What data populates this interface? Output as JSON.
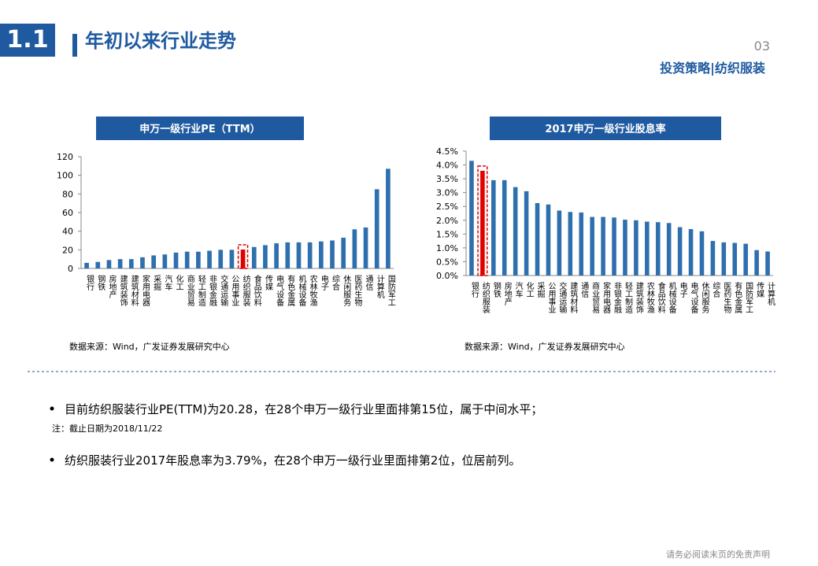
{
  "header": {
    "section": "1.1",
    "title": "年初以来行业走势",
    "page": "03",
    "subtitle": "投资策略|纺织服装"
  },
  "chart_data": [
    {
      "type": "bar",
      "title": "申万一级行业PE（TTM）",
      "source": "数据来源：Wind，广发证券发展研究中心",
      "categories": [
        "银行",
        "钢铁",
        "房地产",
        "建筑装饰",
        "建筑材料",
        "家用电器",
        "采掘",
        "汽车",
        "化工",
        "商业贸易",
        "轻工制造",
        "非银金融",
        "交通运输",
        "公用事业",
        "纺织服装",
        "食品饮料",
        "传媒",
        "电气设备",
        "有色金属",
        "机械设备",
        "农林牧渔",
        "电子",
        "综合",
        "休闲服务",
        "医药生物",
        "通信",
        "计算机",
        "国防军工"
      ],
      "values": [
        6,
        7,
        9,
        10,
        10,
        12,
        14,
        15,
        17,
        18,
        18,
        19,
        20,
        20,
        20.28,
        23,
        25,
        27,
        28,
        28,
        28,
        29,
        30,
        33,
        42,
        44,
        85,
        107
      ],
      "color": "#2e6fae",
      "colors": [
        "#2e6fae",
        "#2e6fae",
        "#2e6fae",
        "#2e6fae",
        "#2e6fae",
        "#2e6fae",
        "#2e6fae",
        "#2e6fae",
        "#2e6fae",
        "#2e6fae",
        "#2e6fae",
        "#2e6fae",
        "#2e6fae",
        "#2e6fae",
        "#e00000",
        "#2e6fae",
        "#2e6fae",
        "#2e6fae",
        "#2e6fae",
        "#2e6fae",
        "#2e6fae",
        "#2e6fae",
        "#2e6fae",
        "#2e6fae",
        "#2e6fae",
        "#2e6fae",
        "#2e6fae",
        "#2e6fae"
      ],
      "ylim": [
        0,
        120
      ],
      "yticks": [
        0,
        20,
        40,
        60,
        80,
        100,
        120
      ]
    },
    {
      "type": "bar",
      "title": "2017申万一级行业股息率",
      "source": "数据来源：Wind，广发证券发展研究中心",
      "categories": [
        "银行",
        "纺织服装",
        "钢铁",
        "房地产",
        "汽车",
        "化工",
        "采掘",
        "公用事业",
        "交通运输",
        "建筑材料",
        "通信",
        "商业贸易",
        "家用电器",
        "非银金融",
        "轻工制造",
        "建筑装饰",
        "农林牧渔",
        "食品饮料",
        "机械设备",
        "电子",
        "电气设备",
        "休闲服务",
        "综合",
        "医药生物",
        "有色金属",
        "国防军工",
        "传媒",
        "计算机"
      ],
      "values": [
        4.15,
        3.79,
        3.45,
        3.45,
        3.2,
        3.05,
        2.62,
        2.57,
        2.35,
        2.3,
        2.28,
        2.12,
        2.12,
        2.1,
        2.02,
        2.0,
        1.95,
        1.93,
        1.9,
        1.75,
        1.68,
        1.6,
        1.25,
        1.2,
        1.18,
        1.15,
        0.92,
        0.87
      ],
      "color": "#2e6fae",
      "colors": [
        "#2e6fae",
        "#e00000",
        "#2e6fae",
        "#2e6fae",
        "#2e6fae",
        "#2e6fae",
        "#2e6fae",
        "#2e6fae",
        "#2e6fae",
        "#2e6fae",
        "#2e6fae",
        "#2e6fae",
        "#2e6fae",
        "#2e6fae",
        "#2e6fae",
        "#2e6fae",
        "#2e6fae",
        "#2e6fae",
        "#2e6fae",
        "#2e6fae",
        "#2e6fae",
        "#2e6fae",
        "#2e6fae",
        "#2e6fae",
        "#2e6fae",
        "#2e6fae",
        "#2e6fae",
        "#2e6fae"
      ],
      "ylim": [
        0,
        4.5
      ],
      "yticks": [
        {
          "value": 0,
          "label": "0.0%"
        },
        {
          "value": 0.5,
          "label": "0.5%"
        },
        {
          "value": 1,
          "label": "1.0%"
        },
        {
          "value": 1.5,
          "label": "1.5%"
        },
        {
          "value": 2,
          "label": "2.0%"
        },
        {
          "value": 2.5,
          "label": "2.5%"
        },
        {
          "value": 3,
          "label": "3.0%"
        },
        {
          "value": 3.5,
          "label": "3.5%"
        },
        {
          "value": 4,
          "label": "4.0%"
        },
        {
          "value": 4.5,
          "label": "4.5%"
        }
      ]
    }
  ],
  "notes": {
    "bullet1": "目前纺织服装行业PE(TTM)为20.28，在28个申万一级行业里面排第15位，属于中间水平；",
    "note1": "注：截止日期为2018/11/22",
    "bullet2": "纺织服装行业2017年股息率为3.79%，在28个申万一级行业里面排第2位，位居前列。"
  },
  "footer": "请务必阅读末页的免责声明"
}
